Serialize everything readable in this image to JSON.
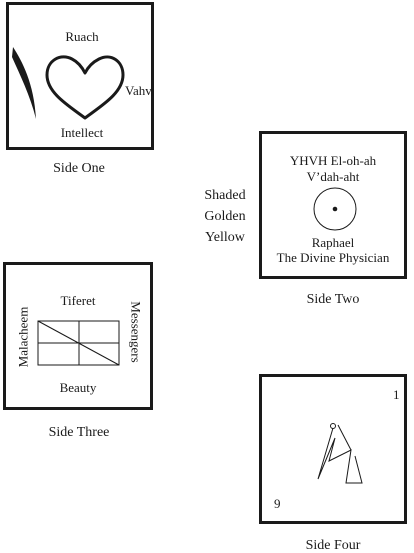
{
  "side_one": {
    "top": "Ruach",
    "right": "Vahv",
    "bottom": "Intellect",
    "caption": "Side One"
  },
  "side_two": {
    "line1": "YHVH El-oh-ah",
    "line2": "V’dah-aht",
    "line3": "Raphael",
    "line4": "The Divine Physician",
    "caption": "Side Two"
  },
  "shading_note": [
    "Shaded",
    "Golden",
    "Yellow"
  ],
  "side_three": {
    "top": "Tiferet",
    "left": "Malacheem",
    "right": "Messengers",
    "bottom": "Beauty",
    "caption": "Side Three"
  },
  "side_four": {
    "corner_top": "1",
    "corner_bottom": "9",
    "caption": "Side Four"
  },
  "colors": {
    "ink": "#1a1a1a",
    "background": "#ffffff"
  },
  "icons": [
    "heart-icon",
    "crescent-icon",
    "circle-dot-icon",
    "rectangle-grid-icon",
    "sigil-line-icon"
  ]
}
